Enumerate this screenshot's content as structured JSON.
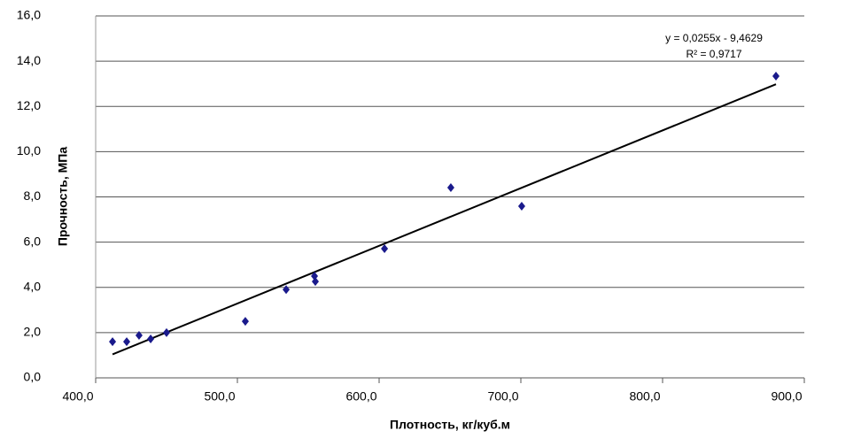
{
  "chart_data": {
    "type": "scatter",
    "x_label": "Плотность, кг/куб.м",
    "y_label": "Прочность, МПа",
    "series": [
      {
        "name": null,
        "color": "#1a1a8c",
        "x": [
          411.9,
          421.9,
          430.6,
          438.8,
          450.0,
          505.6,
          534.4,
          554.4,
          555.0,
          603.8,
          650.6,
          700.6,
          880.0
        ],
        "values": [
          1.6,
          1.6,
          1.88,
          1.72,
          2.0,
          2.5,
          3.9,
          4.5,
          4.26,
          5.71,
          8.41,
          7.59,
          13.34
        ]
      }
    ],
    "trendline": {
      "color": "#000000",
      "x": [
        411.9,
        880.0
      ],
      "values": [
        1.04,
        12.98
      ]
    },
    "annotations": [
      "y = 0,0255x - 9,4629",
      "R² = 0,9717"
    ],
    "xlim": [
      400,
      900
    ],
    "xticks": [
      {
        "value": 400,
        "label": "400,0"
      },
      {
        "value": 500,
        "label": "500,0"
      },
      {
        "value": 600,
        "label": "600,0"
      },
      {
        "value": 700,
        "label": "700,0"
      },
      {
        "value": 800,
        "label": "800,0"
      },
      {
        "value": 900,
        "label": "900,0"
      }
    ],
    "ylim": [
      0,
      16
    ],
    "yticks": [
      {
        "value": 0,
        "label": "0,0"
      },
      {
        "value": 2,
        "label": "2,0"
      },
      {
        "value": 4,
        "label": "4,0"
      },
      {
        "value": 6,
        "label": "6,0"
      },
      {
        "value": 8,
        "label": "8,0"
      },
      {
        "value": 10,
        "label": "10,0"
      },
      {
        "value": 12,
        "label": "12,0"
      },
      {
        "value": 14,
        "label": "14,0"
      },
      {
        "value": 16,
        "label": "16,0"
      }
    ],
    "grid": true
  }
}
